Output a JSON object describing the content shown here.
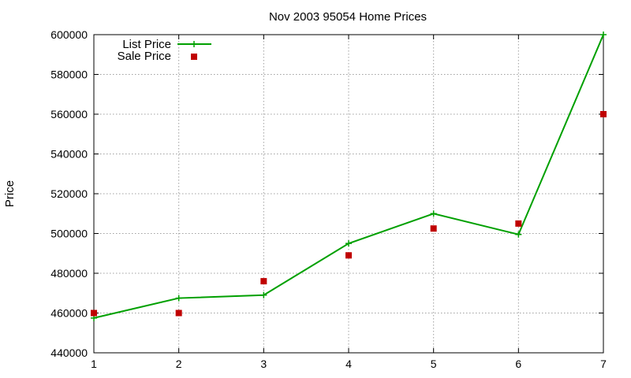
{
  "chart_data": {
    "type": "line",
    "title": "Nov 2003 95054 Home Prices",
    "xlabel": "",
    "ylabel": "Price",
    "xlim": [
      1,
      7
    ],
    "ylim": [
      440000,
      600000
    ],
    "x_ticks": [
      "1",
      "2",
      "3",
      "4",
      "5",
      "6",
      "7"
    ],
    "y_ticks": [
      "440000",
      "460000",
      "480000",
      "500000",
      "520000",
      "540000",
      "560000",
      "580000",
      "600000"
    ],
    "grid": true,
    "legend_position": "top-left",
    "series": [
      {
        "name": "List Price",
        "style": "line-with-plus-markers",
        "color": "#00a000",
        "x": [
          1,
          2,
          3,
          4,
          5,
          6,
          7
        ],
        "values": [
          457500,
          467500,
          469000,
          495000,
          510000,
          499500,
          600000
        ]
      },
      {
        "name": "Sale Price",
        "style": "square-markers",
        "color": "#c00000",
        "x": [
          1,
          2,
          3,
          4,
          5,
          6,
          7
        ],
        "values": [
          460000,
          460000,
          476000,
          489000,
          502500,
          505000,
          560000
        ]
      }
    ]
  }
}
